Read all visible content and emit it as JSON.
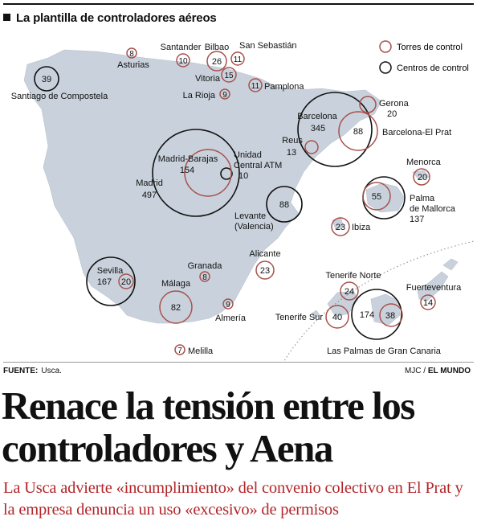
{
  "header": {
    "title": "La plantilla de controladores aéreos"
  },
  "legend": {
    "towers": "Torres de control",
    "centers": "Centros de control"
  },
  "colors": {
    "tower": "#a8514c",
    "center": "#111111",
    "land": "#c9d2dc",
    "headline": "#111111",
    "subhead": "#b3262a"
  },
  "map_labels": [
    {
      "id": "santiago",
      "name": "Santiago de Compostela",
      "kind": "center",
      "value": "39"
    },
    {
      "id": "asturias",
      "name": "Asturias",
      "kind": "tower",
      "value": "8"
    },
    {
      "id": "santander",
      "name": "Santander",
      "kind": "tower",
      "value": "10"
    },
    {
      "id": "bilbao",
      "name": "Bilbao",
      "kind": "tower",
      "value": "26"
    },
    {
      "id": "sansebastian",
      "name": "San Sebastián",
      "kind": "tower",
      "value": "11"
    },
    {
      "id": "vitoria",
      "name": "Vitoria",
      "kind": "tower",
      "value": "15"
    },
    {
      "id": "pamplona",
      "name": "Pamplona",
      "kind": "tower",
      "value": "11"
    },
    {
      "id": "larioja",
      "name": "La Rioja",
      "kind": "tower",
      "value": "9"
    },
    {
      "id": "gerona",
      "name": "Gerona",
      "kind": "tower",
      "value": "20"
    },
    {
      "id": "barcelona",
      "name": "Barcelona",
      "kind": "center",
      "value": "345"
    },
    {
      "id": "barcelonaprat",
      "name": "Barcelona-El Prat",
      "kind": "tower",
      "value": "88"
    },
    {
      "id": "reus",
      "name": "Reus",
      "kind": "tower",
      "value": "13"
    },
    {
      "id": "madrid",
      "name": "Madrid",
      "kind": "center",
      "value": "497"
    },
    {
      "id": "madridbarajas",
      "name": "Madrid-Barajas",
      "kind": "tower",
      "value": "154"
    },
    {
      "id": "unidadcentral",
      "name": "Unidad Central ATM",
      "kind": "center",
      "value": "10"
    },
    {
      "id": "levante",
      "name": "Levante (Valencia)",
      "kind": "center",
      "value": "88"
    },
    {
      "id": "menorca",
      "name": "Menorca",
      "kind": "tower",
      "value": "20"
    },
    {
      "id": "palma",
      "name": "Palma de Mallorca",
      "kind": "center",
      "value": "137"
    },
    {
      "id": "palmatower",
      "name": "",
      "kind": "tower",
      "value": "55"
    },
    {
      "id": "ibiza",
      "name": "Ibiza",
      "kind": "tower",
      "value": "23"
    },
    {
      "id": "alicante",
      "name": "Alicante",
      "kind": "tower",
      "value": "23"
    },
    {
      "id": "sevilla",
      "name": "Sevilla",
      "kind": "center",
      "value": "167"
    },
    {
      "id": "sevillatower",
      "name": "",
      "kind": "tower",
      "value": "20"
    },
    {
      "id": "granada",
      "name": "Granada",
      "kind": "tower",
      "value": "8"
    },
    {
      "id": "malaga",
      "name": "Málaga",
      "kind": "tower",
      "value": "82"
    },
    {
      "id": "almeria",
      "name": "Almería",
      "kind": "tower",
      "value": "9"
    },
    {
      "id": "melilla",
      "name": "Melilla",
      "kind": "tower",
      "value": "7"
    },
    {
      "id": "tenerifenorte",
      "name": "Tenerife Norte",
      "kind": "tower",
      "value": "24"
    },
    {
      "id": "tenerifesur",
      "name": "Tenerife Sur",
      "kind": "tower",
      "value": "40"
    },
    {
      "id": "laspalmas",
      "name": "Las Palmas de Gran Canaria",
      "kind": "center",
      "value": "174"
    },
    {
      "id": "laspalmastower",
      "name": "",
      "kind": "tower",
      "value": "38"
    },
    {
      "id": "fuerteventura",
      "name": "Fuerteventura",
      "kind": "tower",
      "value": "14"
    }
  ],
  "footer": {
    "source_label": "FUENTE:",
    "source_value": "Usca.",
    "credit_author": "MJC /",
    "credit_paper": "EL MUNDO"
  },
  "headline": "Renace la tensión entre los controladores y Aena",
  "subhead": "La Usca advierte «incumplimiento» del convenio colectivo en El Prat y la empresa denuncia un uso «excesivo» de permisos"
}
